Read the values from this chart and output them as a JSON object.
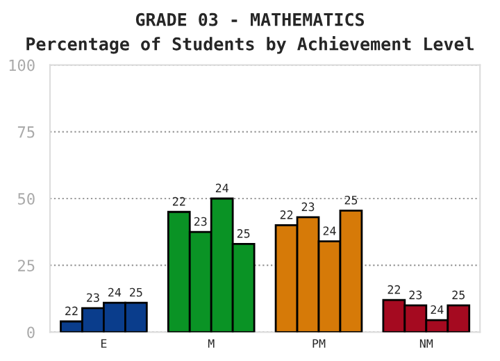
{
  "chart_data": {
    "type": "bar",
    "title": "GRADE 03 - MATHEMATICS",
    "subtitle": "Percentage of Students by Achievement Level",
    "categories": [
      "E",
      "M",
      "PM",
      "NM"
    ],
    "series": [
      {
        "name": "22",
        "colors": [
          "#0a3d8c",
          "#0a9325",
          "#d67a08",
          "#a50a20"
        ],
        "values": [
          4,
          45,
          40,
          12
        ]
      },
      {
        "name": "23",
        "colors": [
          "#0a3d8c",
          "#0a9325",
          "#d67a08",
          "#a50a20"
        ],
        "values": [
          9,
          37.5,
          43,
          10
        ]
      },
      {
        "name": "24",
        "colors": [
          "#0a3d8c",
          "#0a9325",
          "#d67a08",
          "#a50a20"
        ],
        "values": [
          11,
          50,
          34,
          4.5
        ]
      },
      {
        "name": "25",
        "colors": [
          "#0a3d8c",
          "#0a9325",
          "#d67a08",
          "#a50a20"
        ],
        "values": [
          11,
          33,
          45.5,
          10
        ]
      }
    ],
    "ylim": [
      0,
      100
    ],
    "yticks": [
      0,
      25,
      50,
      75,
      100
    ],
    "grid": "y",
    "legend": false
  }
}
